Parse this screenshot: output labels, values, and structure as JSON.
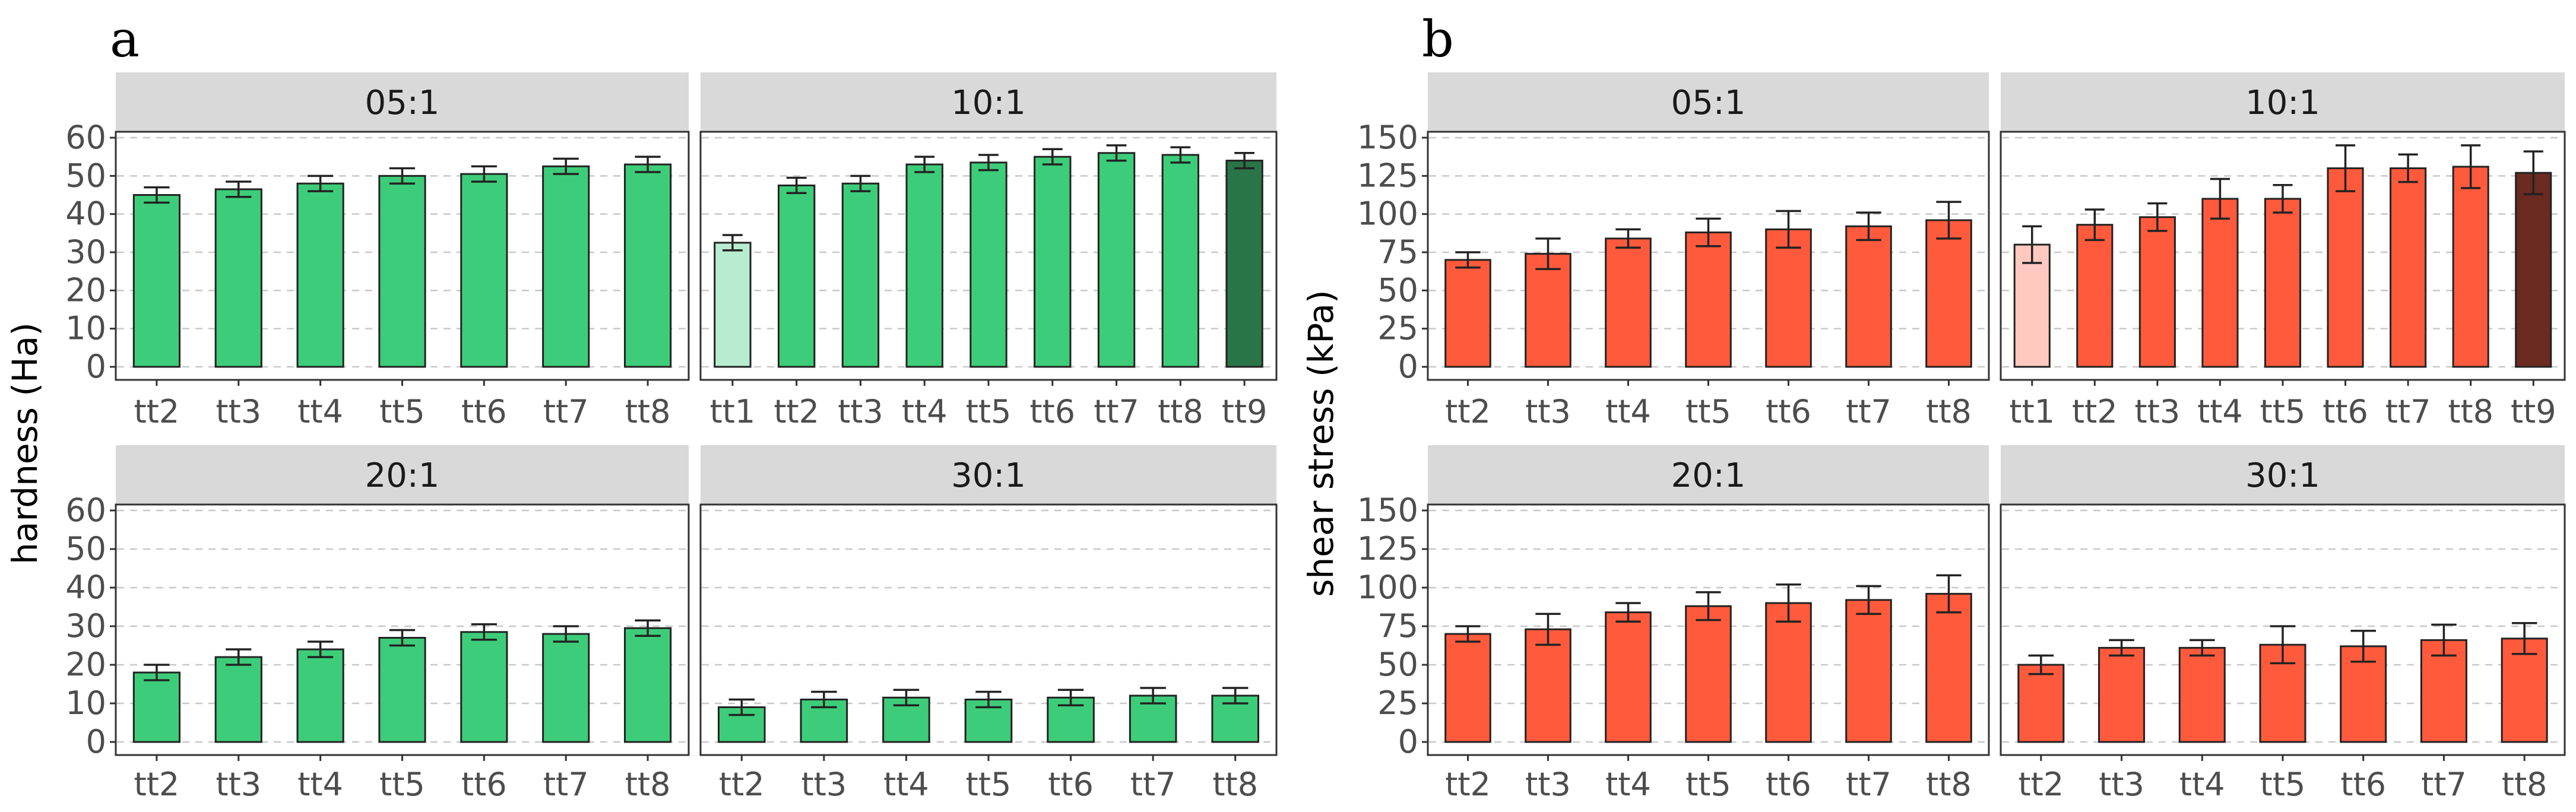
{
  "panel_labels": [
    "a",
    "b"
  ],
  "chart_data": [
    {
      "type": "bar",
      "panel": "a",
      "ylabel": "hardness (Ha)",
      "ylim": [
        0,
        60
      ],
      "yticks": [
        0,
        10,
        20,
        30,
        40,
        50,
        60
      ],
      "colors": {
        "default": "#3dcd7a",
        "first": "#b8ecd0",
        "last": "#2a7547"
      },
      "facets": [
        {
          "label": "05:1",
          "categories": [
            "tt2",
            "tt3",
            "tt4",
            "tt5",
            "tt6",
            "tt7",
            "tt8"
          ],
          "values": [
            45,
            46.5,
            48,
            50,
            50.5,
            52.5,
            53
          ],
          "errors": [
            2,
            2,
            2,
            2,
            2,
            2,
            2
          ]
        },
        {
          "label": "10:1",
          "categories": [
            "tt1",
            "tt2",
            "tt3",
            "tt4",
            "tt5",
            "tt6",
            "tt7",
            "tt8",
            "tt9"
          ],
          "values": [
            32.5,
            47.5,
            48,
            53,
            53.5,
            55,
            56,
            55.5,
            54
          ],
          "errors": [
            2,
            2,
            2,
            2,
            2,
            2,
            2,
            2,
            2
          ],
          "highlight_first_last": true
        },
        {
          "label": "20:1",
          "categories": [
            "tt2",
            "tt3",
            "tt4",
            "tt5",
            "tt6",
            "tt7",
            "tt8"
          ],
          "values": [
            18,
            22,
            24,
            27,
            28.5,
            28,
            29.5
          ],
          "errors": [
            2,
            2,
            2,
            2,
            2,
            2,
            2
          ]
        },
        {
          "label": "30:1",
          "categories": [
            "tt2",
            "tt3",
            "tt4",
            "tt5",
            "tt6",
            "tt7",
            "tt8"
          ],
          "values": [
            9,
            11,
            11.5,
            11,
            11.5,
            12,
            12
          ],
          "errors": [
            2,
            2,
            2,
            2,
            2,
            2,
            2
          ]
        }
      ]
    },
    {
      "type": "bar",
      "panel": "b",
      "ylabel": "shear stress (kPa)",
      "ylim": [
        0,
        150
      ],
      "yticks": [
        0,
        25,
        50,
        75,
        100,
        125,
        150
      ],
      "colors": {
        "default": "#ff5a3c",
        "first": "#ffc9c0",
        "last": "#6b2a20"
      },
      "facets": [
        {
          "label": "05:1",
          "categories": [
            "tt2",
            "tt3",
            "tt4",
            "tt5",
            "tt6",
            "tt7",
            "tt8"
          ],
          "values": [
            70,
            74,
            84,
            88,
            90,
            92,
            96
          ],
          "errors": [
            5,
            10,
            6,
            9,
            12,
            9,
            12
          ]
        },
        {
          "label": "10:1",
          "categories": [
            "tt1",
            "tt2",
            "tt3",
            "tt4",
            "tt5",
            "tt6",
            "tt7",
            "tt8",
            "tt9"
          ],
          "values": [
            80,
            93,
            98,
            110,
            110,
            130,
            130,
            131,
            127
          ],
          "errors": [
            12,
            10,
            9,
            13,
            9,
            15,
            9,
            14,
            14
          ],
          "highlight_first_last": true
        },
        {
          "label": "20:1",
          "categories": [
            "tt2",
            "tt3",
            "tt4",
            "tt5",
            "tt6",
            "tt7",
            "tt8"
          ],
          "values": [
            70,
            73,
            84,
            88,
            90,
            92,
            96
          ],
          "errors": [
            5,
            10,
            6,
            9,
            12,
            9,
            12
          ]
        },
        {
          "label": "30:1",
          "categories": [
            "tt2",
            "tt3",
            "tt4",
            "tt5",
            "tt6",
            "tt7",
            "tt8"
          ],
          "values": [
            50,
            61,
            61,
            63,
            62,
            66,
            67
          ],
          "errors": [
            6,
            5,
            5,
            12,
            10,
            10,
            10
          ]
        }
      ]
    }
  ]
}
